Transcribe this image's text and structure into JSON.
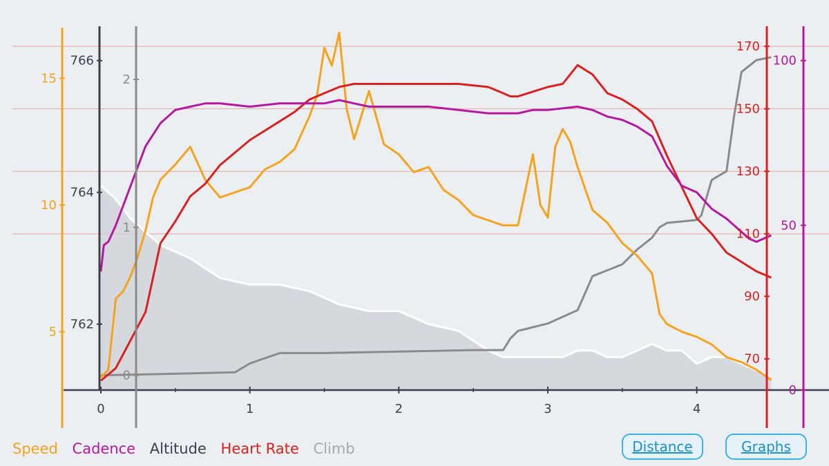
{
  "chart_data": {
    "type": "line",
    "x_axis": {
      "label": "",
      "range": [
        0,
        4.6
      ],
      "ticks": [
        "0",
        "1",
        "2",
        "3",
        "4"
      ]
    },
    "axes": {
      "speed": {
        "color": "#f5a21d",
        "range": [
          2.7,
          17
        ],
        "ticks": [
          5,
          10,
          15
        ]
      },
      "altitude": {
        "color": "#3a3f4a",
        "range": [
          761.0,
          766.5
        ],
        "ticks": [
          762,
          764,
          766
        ]
      },
      "climb": {
        "color": "#8a8a8a",
        "range": [
          -0.1,
          2.35
        ],
        "ticks": [
          0,
          1,
          2
        ]
      },
      "heart_rate": {
        "color": "#d91f1f",
        "range": [
          60,
          176
        ],
        "ticks": [
          70,
          90,
          110,
          130,
          150,
          170
        ]
      },
      "cadence": {
        "color": "#b5179e",
        "range": [
          0,
          110
        ],
        "ticks": [
          0,
          50,
          100
        ]
      }
    },
    "series": [
      {
        "name": "Altitude",
        "axis": "altitude",
        "color": "#ffffff",
        "fill": "#cdd1d6",
        "x": [
          0,
          0.1,
          0.2,
          0.3,
          0.4,
          0.5,
          0.6,
          0.8,
          1.0,
          1.2,
          1.4,
          1.6,
          1.8,
          2.0,
          2.2,
          2.4,
          2.6,
          2.7,
          2.8,
          2.9,
          3.0,
          3.1,
          3.2,
          3.3,
          3.4,
          3.5,
          3.6,
          3.7,
          3.8,
          3.9,
          4.0,
          4.1,
          4.2,
          4.3,
          4.4,
          4.5
        ],
        "y": [
          764.1,
          763.9,
          763.6,
          763.4,
          763.2,
          763.1,
          763.0,
          762.7,
          762.6,
          762.6,
          762.5,
          762.3,
          762.2,
          762.2,
          762.0,
          761.9,
          761.6,
          761.5,
          761.5,
          761.5,
          761.5,
          761.5,
          761.6,
          761.6,
          761.5,
          761.5,
          761.6,
          761.7,
          761.6,
          761.6,
          761.4,
          761.5,
          761.5,
          761.4,
          761.3,
          761.2
        ]
      },
      {
        "name": "Climb",
        "axis": "climb",
        "color": "#8a8a8a",
        "x": [
          0,
          0.5,
          0.9,
          1.0,
          1.2,
          1.5,
          2.0,
          2.5,
          2.7,
          2.75,
          2.8,
          3.0,
          3.2,
          3.3,
          3.5,
          3.6,
          3.7,
          3.75,
          3.8,
          4.0,
          4.03,
          4.1,
          4.2,
          4.25,
          4.3,
          4.4,
          4.5
        ],
        "y": [
          0,
          0.01,
          0.02,
          0.08,
          0.15,
          0.15,
          0.16,
          0.17,
          0.17,
          0.25,
          0.3,
          0.35,
          0.44,
          0.67,
          0.75,
          0.85,
          0.93,
          1.0,
          1.03,
          1.05,
          1.08,
          1.32,
          1.38,
          1.75,
          2.05,
          2.13,
          2.15
        ]
      },
      {
        "name": "Speed",
        "axis": "speed",
        "color": "#f5a21d",
        "x": [
          0,
          0.05,
          0.1,
          0.15,
          0.2,
          0.25,
          0.3,
          0.35,
          0.4,
          0.5,
          0.6,
          0.7,
          0.8,
          0.9,
          1.0,
          1.1,
          1.2,
          1.3,
          1.4,
          1.45,
          1.5,
          1.55,
          1.6,
          1.65,
          1.7,
          1.8,
          1.9,
          2.0,
          2.1,
          2.2,
          2.3,
          2.4,
          2.5,
          2.6,
          2.7,
          2.8,
          2.9,
          2.95,
          3.0,
          3.05,
          3.1,
          3.15,
          3.2,
          3.3,
          3.4,
          3.5,
          3.6,
          3.7,
          3.75,
          3.8,
          3.9,
          4.0,
          4.1,
          4.2,
          4.3,
          4.4,
          4.5
        ],
        "y": [
          3.2,
          3.5,
          6.3,
          6.6,
          7.2,
          8.0,
          9.0,
          10.3,
          11.0,
          11.6,
          12.3,
          11.0,
          10.3,
          10.5,
          10.7,
          11.4,
          11.7,
          12.2,
          13.5,
          14.3,
          16.2,
          15.5,
          16.8,
          13.8,
          12.6,
          14.5,
          12.4,
          12.0,
          11.3,
          11.5,
          10.6,
          10.2,
          9.6,
          9.4,
          9.2,
          9.2,
          12.0,
          10.0,
          9.5,
          12.3,
          13.0,
          12.5,
          11.5,
          9.8,
          9.3,
          8.5,
          8.0,
          7.3,
          5.7,
          5.3,
          5.0,
          4.8,
          4.5,
          4.0,
          3.8,
          3.5,
          3.1
        ]
      },
      {
        "name": "Heart Rate",
        "axis": "heart_rate",
        "color": "#d91f1f",
        "x": [
          0,
          0.05,
          0.1,
          0.2,
          0.3,
          0.4,
          0.5,
          0.6,
          0.7,
          0.8,
          0.9,
          1.0,
          1.1,
          1.2,
          1.3,
          1.4,
          1.5,
          1.6,
          1.7,
          1.8,
          1.9,
          2.0,
          2.2,
          2.4,
          2.6,
          2.7,
          2.75,
          2.8,
          3.0,
          3.1,
          3.2,
          3.3,
          3.4,
          3.5,
          3.6,
          3.7,
          3.8,
          3.9,
          4.0,
          4.1,
          4.2,
          4.3,
          4.4,
          4.5
        ],
        "y": [
          63,
          65,
          67,
          76,
          85,
          107,
          114,
          122,
          126,
          132,
          136,
          140,
          143,
          146,
          149,
          153,
          155,
          157,
          158,
          158,
          158,
          158,
          158,
          158,
          157,
          155,
          154,
          154,
          157,
          158,
          164,
          161,
          155,
          153,
          150,
          146,
          135,
          125,
          115,
          110,
          104,
          101,
          98,
          96
        ]
      },
      {
        "name": "Cadence",
        "axis": "cadence",
        "color": "#b5179e",
        "x": [
          0,
          0.02,
          0.05,
          0.1,
          0.2,
          0.3,
          0.4,
          0.5,
          0.6,
          0.7,
          0.8,
          1.0,
          1.2,
          1.4,
          1.5,
          1.6,
          1.7,
          1.8,
          2.0,
          2.2,
          2.4,
          2.6,
          2.8,
          2.9,
          3.0,
          3.2,
          3.3,
          3.4,
          3.5,
          3.6,
          3.7,
          3.8,
          3.9,
          4.0,
          4.1,
          4.2,
          4.3,
          4.35,
          4.4,
          4.5
        ],
        "y": [
          36,
          44,
          45,
          50,
          62,
          74,
          81,
          85,
          86,
          87,
          87,
          86,
          87,
          87,
          87,
          88,
          87,
          86,
          86,
          86,
          85,
          84,
          84,
          85,
          85,
          86,
          85,
          83,
          82,
          80,
          77,
          68,
          62,
          60,
          55,
          52,
          48,
          46,
          45,
          47
        ]
      }
    ]
  },
  "legend": [
    {
      "label": "Speed",
      "color": "#f5a21d"
    },
    {
      "label": "Cadence",
      "color": "#b5179e"
    },
    {
      "label": "Altitude",
      "color": "#3a3f4a"
    },
    {
      "label": "Heart Rate",
      "color": "#d91f1f"
    },
    {
      "label": "Climb",
      "color": "#a8a8a8"
    }
  ],
  "buttons": {
    "distance": "Distance",
    "graphs": "Graphs"
  }
}
